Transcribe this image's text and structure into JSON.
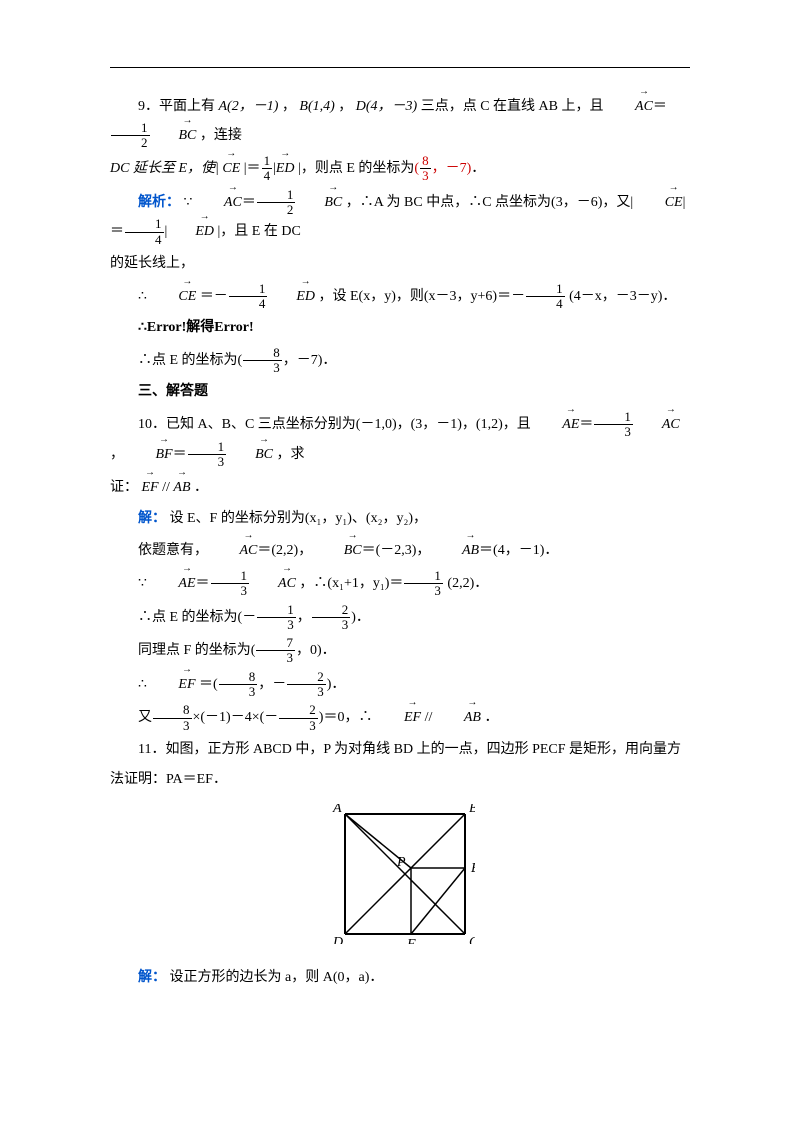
{
  "q9": {
    "line1_a": "9．平面上有 ",
    "A": "A(2，－1)",
    "sep1": "，",
    "B": "B(1,4)",
    "sep2": "，",
    "D": "D(4，－3)",
    "line1_b": "三点，点 C 在直线 AB 上，且",
    "eq1_lhs": "AC",
    "eq1_frac_num": "1",
    "eq1_frac_den": "2",
    "eq1_rhs": "BC",
    "line1_c": "，连接",
    "line2_a": "DC 延长至 E，使|",
    "CE": "CE",
    "eq2_mid": "|＝",
    "eq2_frac_num": "1",
    "eq2_frac_den": "4",
    "ED": "ED",
    "eq2_tail": "|，则点 E 的坐标为",
    "ans_open": "(",
    "ans_frac_num": "8",
    "ans_frac_den": "3",
    "ans_rest": "，－7)",
    "ans_dot": "．",
    "jiexi_label": "解析：",
    "jiexi_a": "∵",
    "jiexi_b": "，∴A 为 BC 中点，∴C 点坐标为(3，－6)，又|",
    "jiexi_c": "|，且 E 在 DC",
    "jiexi_line2": "的延长线上，",
    "step1_a": "∴",
    "step1_neg": "＝－",
    "step1_b": "，设 E(x，y)，则(x－3，y+6)＝－",
    "step1_c": "(4－x，－3－y)．",
    "err": "∴Error!解得Error!",
    "concl_a": "∴点 E 的坐标为(",
    "concl_b": "，－7)．"
  },
  "section3": "三、解答题",
  "q10": {
    "line1_a": "10．已知 A、B、C 三点坐标分别为(－1,0)，(3，－1)，(1,2)，且",
    "AE": "AE",
    "f13n": "1",
    "f13d": "3",
    "AC": "AC",
    "BF": "BF",
    "BC": "BC",
    "line1_b": "，求",
    "line2_a": "证：",
    "EF": "EF",
    "par": "//",
    "AB": "AB",
    "dot": "．",
    "jie": "解：",
    "jie_a": "设 E、F 的坐标分别为(x₁，y₁)、(x₂，y₂)，",
    "dep": "依题意有，",
    "ac_val": "＝(2,2)，",
    "bc_val": "＝(－2,3)，",
    "ab_val": "＝(4，－1)．",
    "s2_a": "∵",
    "s2_b": "，∴(x₁+1，y₁)＝",
    "s2_c": "(2,2)．",
    "s3_a": "∴点 E 的坐标为(－",
    "s3_mid": "，",
    "s3_b": ")．",
    "f23n": "2",
    "f23d": "3",
    "s4_a": "同理点 F 的坐标为(",
    "f73n": "7",
    "f73d": "3",
    "s4_b": "，0)．",
    "s5_a": "∴",
    "s5_b": "＝(",
    "f83n": "8",
    "f83d": "3",
    "s5_mid": "，－",
    "s5_c": ")．",
    "s6_a": "又",
    "s6_b": "×(－1)－4×(－",
    "s6_c": ")＝0，∴",
    "s6_d": "．"
  },
  "q11": {
    "line1": "11．如图，正方形 ABCD 中，P 为对角线 BD 上的一点，四边形 PECF 是矩形，用向量方",
    "line2": "法证明：PA＝EF．",
    "jie": "解：",
    "jie_a": "设正方形的边长为 a，则 A(0，a)．"
  },
  "diagram": {
    "size": 120,
    "labels": {
      "A": "A",
      "B": "B",
      "C": "C",
      "D": "D",
      "E": "E",
      "F": "F",
      "P": "P"
    },
    "stroke": "#000000",
    "font": "italic 14px Times"
  }
}
